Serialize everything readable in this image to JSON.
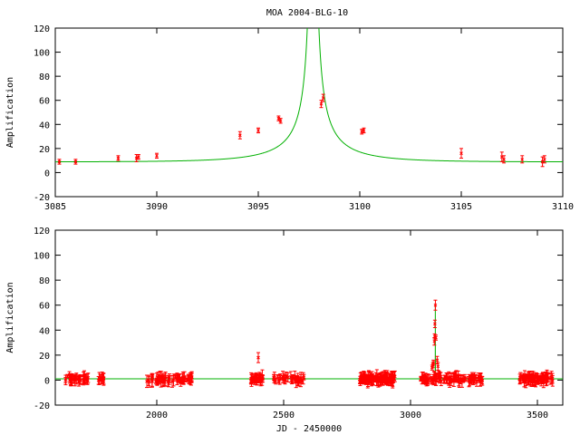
{
  "title": "MOA 2004-BLG-10",
  "colors": {
    "data": "#ff0000",
    "model": "#00b000",
    "axes": "#000000"
  },
  "chart_data": [
    {
      "type": "scatter",
      "panel": "top",
      "xlabel": "",
      "ylabel": "Amplification",
      "xlim": [
        3085,
        3110
      ],
      "ylim": [
        -20,
        120
      ],
      "xticks": [
        3085,
        3090,
        3095,
        3100,
        3105,
        3110
      ],
      "yticks": [
        -20,
        0,
        20,
        40,
        60,
        80,
        100,
        120
      ],
      "model": {
        "t0": 3097.7,
        "u0": 0.0167,
        "tE": 4.0,
        "baseline": 8.8
      },
      "points": [
        {
          "x": 3085.2,
          "y": 9,
          "err": 2
        },
        {
          "x": 3086.0,
          "y": 9,
          "err": 2
        },
        {
          "x": 3088.1,
          "y": 12,
          "err": 2
        },
        {
          "x": 3089.0,
          "y": 12,
          "err": 3
        },
        {
          "x": 3089.1,
          "y": 13,
          "err": 2
        },
        {
          "x": 3090.0,
          "y": 14,
          "err": 2
        },
        {
          "x": 3094.1,
          "y": 31,
          "err": 3
        },
        {
          "x": 3095.0,
          "y": 35,
          "err": 2
        },
        {
          "x": 3096.0,
          "y": 45,
          "err": 2
        },
        {
          "x": 3096.1,
          "y": 43,
          "err": 2
        },
        {
          "x": 3098.1,
          "y": 57,
          "err": 3
        },
        {
          "x": 3098.2,
          "y": 62,
          "err": 3
        },
        {
          "x": 3100.1,
          "y": 34,
          "err": 2
        },
        {
          "x": 3100.2,
          "y": 35,
          "err": 2
        },
        {
          "x": 3105.0,
          "y": 16,
          "err": 4
        },
        {
          "x": 3107.0,
          "y": 13,
          "err": 4
        },
        {
          "x": 3107.1,
          "y": 11,
          "err": 3
        },
        {
          "x": 3108.0,
          "y": 11,
          "err": 3
        },
        {
          "x": 3109.0,
          "y": 9,
          "err": 4
        },
        {
          "x": 3109.1,
          "y": 11,
          "err": 3
        }
      ]
    },
    {
      "type": "scatter",
      "panel": "bottom",
      "xlabel": "JD - 2450000",
      "ylabel": "Amplification",
      "xlim": [
        1600,
        3600
      ],
      "ylim": [
        -20,
        120
      ],
      "xticks": [
        2000,
        2500,
        3000,
        3500
      ],
      "yticks": [
        -20,
        0,
        20,
        40,
        60,
        80,
        100,
        120
      ],
      "model": {
        "t0": 3097.7,
        "u0": 0.0167,
        "tE": 4.0,
        "baseline": 1.0
      },
      "seasons": [
        {
          "x0": 1640,
          "x1": 1730,
          "n": 40
        },
        {
          "x0": 1770,
          "x1": 1800,
          "n": 10
        },
        {
          "x0": 1960,
          "x1": 2140,
          "n": 70
        },
        {
          "x0": 2370,
          "x1": 2420,
          "n": 30
        },
        {
          "x0": 2460,
          "x1": 2580,
          "n": 40
        },
        {
          "x0": 2800,
          "x1": 2940,
          "n": 120
        },
        {
          "x0": 3040,
          "x1": 3290,
          "n": 110
        },
        {
          "x0": 3430,
          "x1": 3560,
          "n": 80
        }
      ],
      "points": [
        {
          "x": 2400,
          "y": 18,
          "err": 4
        },
        {
          "x": 3085,
          "y": 10,
          "err": 2
        },
        {
          "x": 3088,
          "y": 12,
          "err": 2
        },
        {
          "x": 3090,
          "y": 14,
          "err": 2
        },
        {
          "x": 3094,
          "y": 31,
          "err": 3
        },
        {
          "x": 3095,
          "y": 35,
          "err": 2
        },
        {
          "x": 3096,
          "y": 45,
          "err": 3
        },
        {
          "x": 3098,
          "y": 60,
          "err": 4
        },
        {
          "x": 3100,
          "y": 34,
          "err": 2
        },
        {
          "x": 3105,
          "y": 16,
          "err": 3
        },
        {
          "x": 3108,
          "y": 11,
          "err": 3
        }
      ]
    }
  ]
}
